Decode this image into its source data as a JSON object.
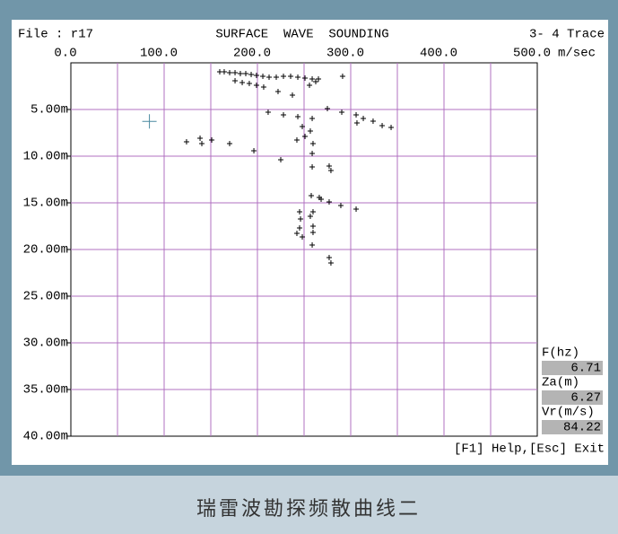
{
  "header": {
    "file": "File : r17",
    "trace": "3- 4 Trace"
  },
  "chart_data": {
    "type": "scatter",
    "title": "SURFACE  WAVE  SOUNDING",
    "x_label": "m/sec",
    "xlim": [
      0,
      500
    ],
    "ylim": [
      0,
      40
    ],
    "y_inverted": true,
    "grid": true,
    "xticks": [
      {
        "value": 0,
        "label": "0.0"
      },
      {
        "value": 100,
        "label": "100.0"
      },
      {
        "value": 200,
        "label": "200.0"
      },
      {
        "value": 300,
        "label": "300.0"
      },
      {
        "value": 400,
        "label": "400.0"
      },
      {
        "value": 500,
        "label": "500.0"
      }
    ],
    "xminor_ticks": [
      50,
      150,
      250,
      350,
      450
    ],
    "yticks": [
      {
        "value": 5,
        "label": "5.00m"
      },
      {
        "value": 10,
        "label": "10.00m"
      },
      {
        "value": 15,
        "label": "15.00m"
      },
      {
        "value": 20,
        "label": "20.00m"
      },
      {
        "value": 25,
        "label": "25.00m"
      },
      {
        "value": 30,
        "label": "30.00m"
      },
      {
        "value": 35,
        "label": "35.00m"
      },
      {
        "value": 40,
        "label": "40.00m"
      }
    ],
    "series": [
      {
        "color": "#000000",
        "x": [
          159.6,
          164.4,
          170.2,
          176.0,
          181.7,
          187.5,
          193.3,
          199.0,
          205.8,
          212.5,
          220.2,
          227.9,
          235.6,
          243.3,
          251.0,
          258.7,
          265.4,
          176.0,
          183.7,
          191.3,
          199.0,
          206.7,
          222.1,
          237.5,
          255.8,
          262.5,
          291.3,
          211.5,
          227.9,
          243.3,
          258.7,
          275.0,
          290.4,
          305.8,
          313.5,
          324.0,
          333.7,
          343.3,
          306.7,
          124.0,
          138.5,
          140.4,
          151.0,
          170.2,
          196.2,
          225.0,
          242.3,
          251.0,
          256.7,
          248.1,
          259.6,
          258.7,
          258.7,
          276.9,
          278.8,
          257.7,
          266.3,
          268.3,
          276.9,
          289.4,
          305.8,
          245.2,
          259.6,
          246.2,
          256.7,
          259.6,
          245.2,
          259.6,
          242.3,
          248.1,
          258.7,
          276.9,
          278.8
        ],
        "values": [
          0.96,
          0.96,
          1.06,
          1.06,
          1.15,
          1.15,
          1.25,
          1.35,
          1.44,
          1.54,
          1.54,
          1.44,
          1.44,
          1.54,
          1.63,
          1.73,
          1.73,
          1.92,
          2.12,
          2.21,
          2.4,
          2.6,
          3.08,
          3.46,
          2.4,
          2.02,
          1.44,
          5.29,
          5.58,
          5.77,
          5.96,
          4.9,
          5.29,
          5.58,
          5.96,
          6.25,
          6.73,
          6.92,
          6.44,
          8.46,
          8.08,
          8.65,
          8.27,
          8.65,
          9.42,
          10.38,
          8.27,
          7.88,
          7.31,
          6.83,
          8.65,
          9.71,
          11.15,
          11.06,
          11.54,
          14.23,
          14.42,
          14.62,
          14.9,
          15.29,
          15.67,
          15.96,
          15.96,
          16.73,
          16.44,
          17.5,
          17.69,
          18.17,
          18.27,
          18.65,
          19.52,
          20.87,
          21.44
        ]
      }
    ]
  },
  "readout": {
    "f_label": "F(hz)",
    "f_value": 6.71,
    "za_label": "Za(m)",
    "za_value": 6.27,
    "vr_label": "Vr(m/s)",
    "vr_value": 84.22,
    "cursor_color": "#4a8aa0"
  },
  "footer": "[F1] Help,[Esc] Exit",
  "caption": "瑞雷波勘探频散曲线二"
}
